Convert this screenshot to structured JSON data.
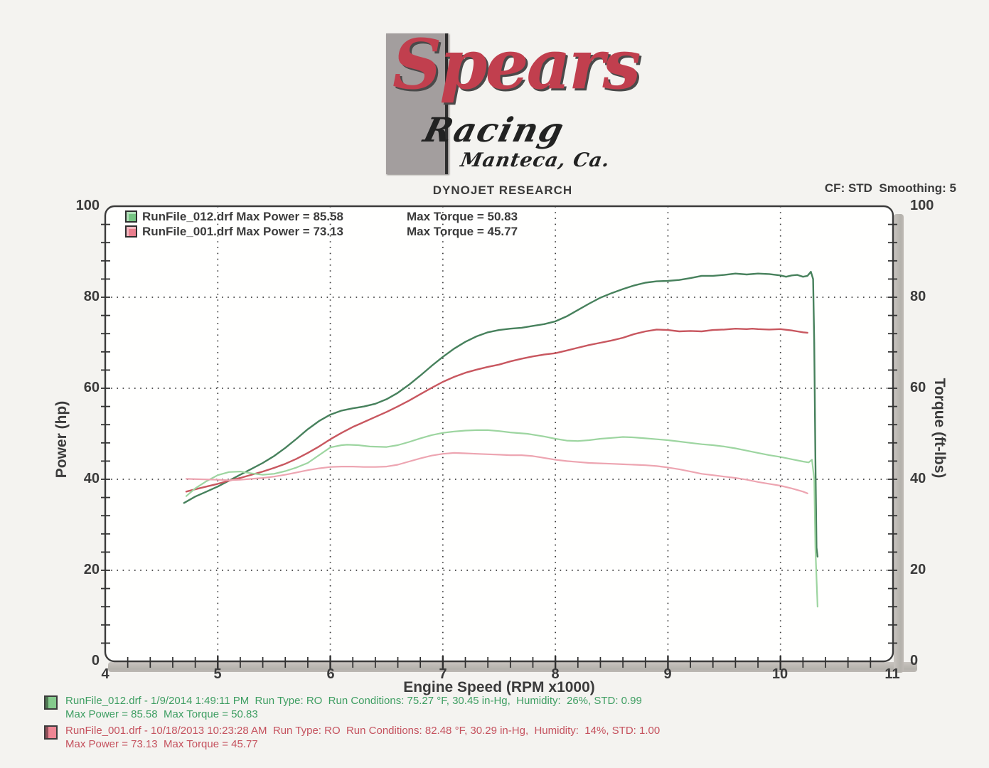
{
  "logo": {
    "brand": "Spears",
    "script": "Racing",
    "location": "Manteca, Ca.",
    "brand_color": "#c13f4e",
    "box_color": "#a39e9e"
  },
  "header": {
    "title": "DYNOJET RESEARCH",
    "settings": "CF: STD  Smoothing: 5"
  },
  "legend": {
    "rows": [
      {
        "swatch": "#76c683",
        "file_power": "RunFile_012.drf Max Power = 85.58",
        "torque": "Max Torque = 50.83"
      },
      {
        "swatch": "#e97e8d",
        "file_power": "RunFile_001.drf Max Power = 73.13",
        "torque": "Max Torque = 45.77"
      }
    ]
  },
  "axes": {
    "x_label": "Engine Speed (RPM x1000)",
    "y_left_label": "Power (hp)",
    "y_right_label": "Torque (ft-lbs)",
    "x_ticks": [
      "4",
      "5",
      "6",
      "7",
      "8",
      "9",
      "10",
      "11"
    ],
    "y_ticks": [
      "100",
      "80",
      "60",
      "40",
      "20",
      "0"
    ]
  },
  "footer": {
    "runs": [
      {
        "swatch": "#85ca8d",
        "color": "#3e9e62",
        "line1": "RunFile_012.drf - 1/9/2014 1:49:11 PM  Run Type: RO  Run Conditions: 75.27 °F, 30.45 in-Hg,  Humidity:  26%, STD: 0.99",
        "line2": "Max Power = 85.58  Max Torque = 50.83"
      },
      {
        "swatch": "#ee8694",
        "color": "#c5525e",
        "line1": "RunFile_001.drf - 10/18/2013 10:23:28 AM  Run Type: RO  Run Conditions: 82.48 °F, 30.29 in-Hg,  Humidity:  14%, STD: 1.00",
        "line2": "Max Power = 73.13  Max Torque = 45.77"
      }
    ]
  },
  "chart_data": {
    "type": "line",
    "title": "DYNOJET RESEARCH",
    "xlabel": "Engine Speed (RPM x1000)",
    "ylabel_left": "Power (hp)",
    "ylabel_right": "Torque (ft-lbs)",
    "xlim": [
      4,
      11
    ],
    "ylim": [
      0,
      100
    ],
    "x_major_step": 1,
    "x_minor_step": 0.2,
    "y_major_step": 20,
    "y_minor_step": 4,
    "grid": "dotted",
    "legend_position": "top-left",
    "series": [
      {
        "name": "RunFile_012.drf Power (hp)",
        "axis": "left",
        "color": "#47815c",
        "width": 2.4,
        "max": 85.58,
        "points": [
          [
            4.7,
            34.8
          ],
          [
            4.8,
            36.2
          ],
          [
            4.9,
            37.3
          ],
          [
            5.0,
            38.4
          ],
          [
            5.1,
            39.7
          ],
          [
            5.2,
            41.0
          ],
          [
            5.3,
            42.3
          ],
          [
            5.4,
            43.6
          ],
          [
            5.5,
            45.1
          ],
          [
            5.6,
            46.9
          ],
          [
            5.7,
            48.9
          ],
          [
            5.8,
            51.0
          ],
          [
            5.9,
            52.8
          ],
          [
            6.0,
            54.2
          ],
          [
            6.1,
            55.1
          ],
          [
            6.2,
            55.6
          ],
          [
            6.3,
            56.0
          ],
          [
            6.4,
            56.6
          ],
          [
            6.5,
            57.6
          ],
          [
            6.6,
            59.0
          ],
          [
            6.7,
            60.8
          ],
          [
            6.8,
            62.8
          ],
          [
            6.9,
            64.9
          ],
          [
            7.0,
            66.9
          ],
          [
            7.1,
            68.7
          ],
          [
            7.2,
            70.2
          ],
          [
            7.3,
            71.4
          ],
          [
            7.4,
            72.3
          ],
          [
            7.5,
            72.8
          ],
          [
            7.6,
            73.1
          ],
          [
            7.7,
            73.3
          ],
          [
            7.8,
            73.7
          ],
          [
            7.9,
            74.1
          ],
          [
            8.0,
            74.7
          ],
          [
            8.1,
            75.8
          ],
          [
            8.2,
            77.2
          ],
          [
            8.3,
            78.6
          ],
          [
            8.4,
            79.9
          ],
          [
            8.5,
            80.9
          ],
          [
            8.6,
            81.8
          ],
          [
            8.7,
            82.6
          ],
          [
            8.8,
            83.2
          ],
          [
            8.9,
            83.5
          ],
          [
            9.0,
            83.6
          ],
          [
            9.1,
            83.8
          ],
          [
            9.2,
            84.2
          ],
          [
            9.3,
            84.7
          ],
          [
            9.4,
            84.7
          ],
          [
            9.5,
            84.9
          ],
          [
            9.6,
            85.2
          ],
          [
            9.7,
            85.0
          ],
          [
            9.8,
            85.2
          ],
          [
            9.9,
            85.1
          ],
          [
            10.0,
            84.8
          ],
          [
            10.05,
            84.5
          ],
          [
            10.1,
            84.8
          ],
          [
            10.15,
            84.9
          ],
          [
            10.2,
            84.5
          ],
          [
            10.24,
            84.7
          ],
          [
            10.27,
            85.6
          ],
          [
            10.29,
            84.0
          ],
          [
            10.3,
            70.0
          ],
          [
            10.31,
            45.0
          ],
          [
            10.32,
            25.0
          ],
          [
            10.33,
            23.0
          ]
        ]
      },
      {
        "name": "RunFile_001.drf Power (hp)",
        "axis": "left",
        "color": "#c8575f",
        "width": 2.4,
        "max": 73.13,
        "points": [
          [
            4.72,
            37.3
          ],
          [
            4.8,
            37.8
          ],
          [
            4.9,
            38.4
          ],
          [
            5.0,
            39.0
          ],
          [
            5.1,
            39.7
          ],
          [
            5.2,
            40.3
          ],
          [
            5.3,
            41.0
          ],
          [
            5.4,
            41.7
          ],
          [
            5.5,
            42.5
          ],
          [
            5.6,
            43.4
          ],
          [
            5.7,
            44.5
          ],
          [
            5.8,
            45.8
          ],
          [
            5.9,
            47.2
          ],
          [
            6.0,
            48.8
          ],
          [
            6.1,
            50.2
          ],
          [
            6.2,
            51.5
          ],
          [
            6.3,
            52.6
          ],
          [
            6.4,
            53.7
          ],
          [
            6.5,
            54.8
          ],
          [
            6.6,
            56.0
          ],
          [
            6.7,
            57.3
          ],
          [
            6.8,
            58.7
          ],
          [
            6.9,
            60.1
          ],
          [
            7.0,
            61.4
          ],
          [
            7.1,
            62.5
          ],
          [
            7.2,
            63.4
          ],
          [
            7.3,
            64.1
          ],
          [
            7.4,
            64.7
          ],
          [
            7.5,
            65.2
          ],
          [
            7.6,
            65.9
          ],
          [
            7.7,
            66.5
          ],
          [
            7.8,
            67.0
          ],
          [
            7.9,
            67.4
          ],
          [
            8.0,
            67.7
          ],
          [
            8.1,
            68.3
          ],
          [
            8.2,
            68.9
          ],
          [
            8.3,
            69.5
          ],
          [
            8.4,
            70.0
          ],
          [
            8.5,
            70.5
          ],
          [
            8.6,
            71.1
          ],
          [
            8.7,
            71.9
          ],
          [
            8.8,
            72.5
          ],
          [
            8.9,
            72.9
          ],
          [
            9.0,
            72.8
          ],
          [
            9.1,
            72.5
          ],
          [
            9.2,
            72.6
          ],
          [
            9.3,
            72.5
          ],
          [
            9.4,
            72.8
          ],
          [
            9.5,
            72.9
          ],
          [
            9.6,
            73.1
          ],
          [
            9.7,
            73.0
          ],
          [
            9.75,
            73.1
          ],
          [
            9.8,
            73.0
          ],
          [
            9.9,
            72.9
          ],
          [
            10.0,
            73.0
          ],
          [
            10.1,
            72.7
          ],
          [
            10.15,
            72.5
          ],
          [
            10.2,
            72.3
          ],
          [
            10.24,
            72.2
          ]
        ]
      },
      {
        "name": "RunFile_012.drf Torque (ft-lbs)",
        "axis": "right",
        "color": "#9dd5a0",
        "width": 2.2,
        "max": 50.83,
        "points": [
          [
            4.72,
            36.3
          ],
          [
            4.8,
            38.0
          ],
          [
            4.9,
            39.6
          ],
          [
            5.0,
            40.9
          ],
          [
            5.1,
            41.6
          ],
          [
            5.2,
            41.7
          ],
          [
            5.3,
            41.3
          ],
          [
            5.4,
            41.0
          ],
          [
            5.5,
            41.2
          ],
          [
            5.6,
            41.8
          ],
          [
            5.7,
            42.6
          ],
          [
            5.8,
            43.6
          ],
          [
            5.9,
            45.3
          ],
          [
            6.0,
            47.0
          ],
          [
            6.1,
            47.5
          ],
          [
            6.15,
            47.6
          ],
          [
            6.25,
            47.5
          ],
          [
            6.35,
            47.2
          ],
          [
            6.5,
            47.1
          ],
          [
            6.6,
            47.5
          ],
          [
            6.7,
            48.2
          ],
          [
            6.8,
            49.0
          ],
          [
            6.9,
            49.7
          ],
          [
            7.0,
            50.2
          ],
          [
            7.1,
            50.5
          ],
          [
            7.2,
            50.7
          ],
          [
            7.3,
            50.8
          ],
          [
            7.4,
            50.8
          ],
          [
            7.5,
            50.6
          ],
          [
            7.6,
            50.3
          ],
          [
            7.75,
            50.0
          ],
          [
            7.9,
            49.4
          ],
          [
            8.0,
            48.9
          ],
          [
            8.1,
            48.5
          ],
          [
            8.2,
            48.4
          ],
          [
            8.3,
            48.6
          ],
          [
            8.4,
            48.9
          ],
          [
            8.5,
            49.1
          ],
          [
            8.6,
            49.3
          ],
          [
            8.7,
            49.2
          ],
          [
            8.8,
            49.0
          ],
          [
            8.9,
            48.8
          ],
          [
            9.0,
            48.6
          ],
          [
            9.1,
            48.3
          ],
          [
            9.2,
            48.0
          ],
          [
            9.3,
            47.7
          ],
          [
            9.4,
            47.5
          ],
          [
            9.5,
            47.2
          ],
          [
            9.6,
            46.8
          ],
          [
            9.7,
            46.3
          ],
          [
            9.8,
            45.8
          ],
          [
            9.9,
            45.3
          ],
          [
            10.0,
            44.9
          ],
          [
            10.1,
            44.4
          ],
          [
            10.2,
            43.9
          ],
          [
            10.25,
            43.7
          ],
          [
            10.28,
            44.3
          ],
          [
            10.3,
            40.0
          ],
          [
            10.31,
            25.0
          ],
          [
            10.33,
            12.0
          ]
        ]
      },
      {
        "name": "RunFile_001.drf Torque (ft-lbs)",
        "axis": "right",
        "color": "#eda5b1",
        "width": 2.2,
        "max": 45.77,
        "points": [
          [
            4.72,
            40.1
          ],
          [
            4.85,
            40.0
          ],
          [
            5.0,
            39.9
          ],
          [
            5.1,
            39.8
          ],
          [
            5.2,
            39.9
          ],
          [
            5.3,
            40.1
          ],
          [
            5.4,
            40.3
          ],
          [
            5.5,
            40.6
          ],
          [
            5.6,
            41.0
          ],
          [
            5.7,
            41.5
          ],
          [
            5.8,
            42.0
          ],
          [
            5.9,
            42.4
          ],
          [
            6.0,
            42.7
          ],
          [
            6.1,
            42.8
          ],
          [
            6.2,
            42.8
          ],
          [
            6.3,
            42.7
          ],
          [
            6.4,
            42.7
          ],
          [
            6.5,
            42.8
          ],
          [
            6.6,
            43.2
          ],
          [
            6.7,
            43.9
          ],
          [
            6.8,
            44.6
          ],
          [
            6.9,
            45.2
          ],
          [
            7.0,
            45.6
          ],
          [
            7.1,
            45.8
          ],
          [
            7.2,
            45.7
          ],
          [
            7.3,
            45.6
          ],
          [
            7.4,
            45.5
          ],
          [
            7.5,
            45.4
          ],
          [
            7.6,
            45.3
          ],
          [
            7.7,
            45.3
          ],
          [
            7.8,
            45.1
          ],
          [
            7.9,
            44.7
          ],
          [
            8.0,
            44.3
          ],
          [
            8.1,
            44.0
          ],
          [
            8.2,
            43.8
          ],
          [
            8.3,
            43.6
          ],
          [
            8.4,
            43.5
          ],
          [
            8.5,
            43.4
          ],
          [
            8.6,
            43.3
          ],
          [
            8.7,
            43.2
          ],
          [
            8.8,
            43.1
          ],
          [
            8.9,
            42.9
          ],
          [
            9.0,
            42.6
          ],
          [
            9.1,
            42.2
          ],
          [
            9.2,
            41.7
          ],
          [
            9.3,
            41.2
          ],
          [
            9.4,
            40.9
          ],
          [
            9.5,
            40.6
          ],
          [
            9.6,
            40.3
          ],
          [
            9.7,
            39.9
          ],
          [
            9.8,
            39.4
          ],
          [
            9.9,
            39.0
          ],
          [
            10.0,
            38.6
          ],
          [
            10.1,
            38.0
          ],
          [
            10.2,
            37.3
          ],
          [
            10.24,
            36.9
          ]
        ]
      }
    ]
  }
}
